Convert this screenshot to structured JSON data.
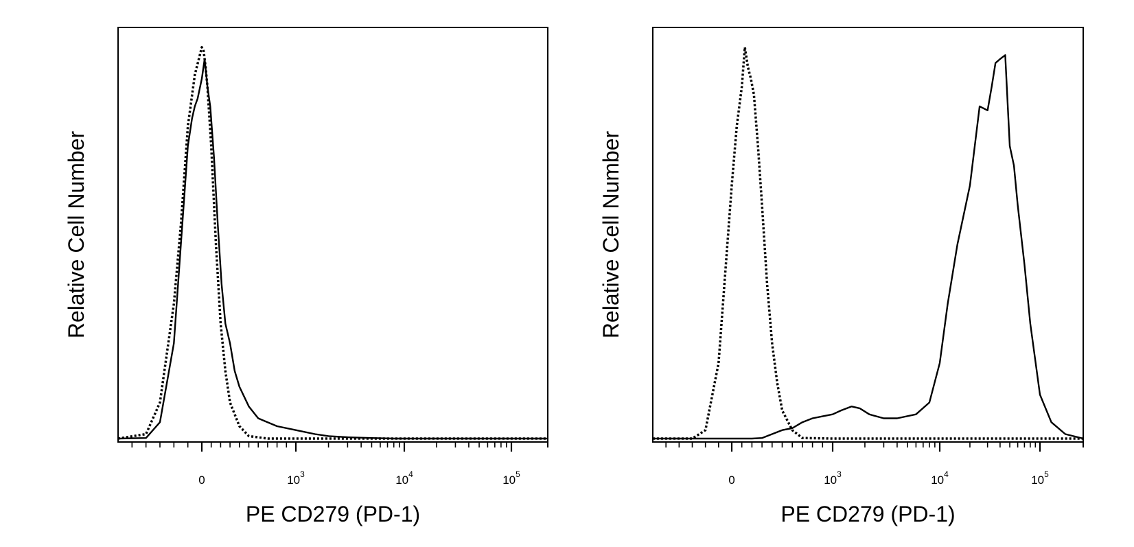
{
  "chart_data": [
    {
      "type": "line",
      "xlabel": "PE  CD279 (PD-1)",
      "ylabel": "Relative Cell Number",
      "x_scale": "biexponential",
      "xlim": [
        -600,
        150000
      ],
      "ylim": [
        0,
        105
      ],
      "grid": false,
      "legend": "none",
      "x_ticks": [
        {
          "value": 0,
          "base": "0",
          "exp": ""
        },
        {
          "value": 1000,
          "base": "10",
          "exp": "3"
        },
        {
          "value": 10000,
          "base": "10",
          "exp": "4"
        },
        {
          "value": 100000,
          "base": "10",
          "exp": "5"
        }
      ],
      "series": [
        {
          "style": "dotted",
          "x": [
            -600,
            -400,
            -300,
            -200,
            -150,
            -100,
            -50,
            0,
            20,
            40,
            60,
            100,
            150,
            200,
            250,
            300,
            400,
            500,
            700,
            1000,
            2000,
            5000,
            10000,
            50000,
            150000
          ],
          "y": [
            0,
            2,
            10,
            35,
            55,
            80,
            93,
            100,
            99,
            95,
            90,
            75,
            50,
            30,
            18,
            10,
            4,
            1.5,
            0.5,
            0.2,
            0,
            0,
            0,
            0,
            0
          ]
        },
        {
          "style": "solid",
          "x": [
            -600,
            -400,
            -300,
            -200,
            -150,
            -100,
            -70,
            -50,
            -30,
            0,
            30,
            60,
            90,
            130,
            170,
            210,
            250,
            300,
            350,
            400,
            500,
            600,
            800,
            1000,
            1500,
            2000,
            3000,
            5000,
            8000,
            10000,
            20000,
            30000,
            50000,
            150000
          ],
          "y": [
            0,
            1,
            5,
            25,
            50,
            75,
            82,
            85,
            87,
            92,
            97,
            90,
            85,
            72,
            55,
            40,
            30,
            25,
            18,
            14,
            9,
            6,
            4,
            3,
            2,
            1.5,
            1.2,
            1,
            0.8,
            0.5,
            0.3,
            0.1,
            0,
            0
          ]
        }
      ]
    },
    {
      "type": "line",
      "xlabel": "PE  CD279 (PD-1)",
      "ylabel": "Relative Cell Number",
      "x_scale": "biexponential",
      "xlim": [
        -600,
        200000
      ],
      "ylim": [
        0,
        105
      ],
      "grid": false,
      "legend": "none",
      "x_ticks": [
        {
          "value": 0,
          "base": "0",
          "exp": ""
        },
        {
          "value": 1000,
          "base": "10",
          "exp": "3"
        },
        {
          "value": 10000,
          "base": "10",
          "exp": "4"
        },
        {
          "value": 100000,
          "base": "10",
          "exp": "5"
        }
      ],
      "series": [
        {
          "style": "dotted",
          "x": [
            -600,
            -400,
            -300,
            -200,
            -100,
            0,
            50,
            100,
            130,
            160,
            190,
            220,
            260,
            300,
            350,
            400,
            450,
            500,
            600,
            700,
            1000,
            2000,
            10000,
            200000
          ],
          "y": [
            0,
            0,
            0.5,
            3,
            20,
            65,
            80,
            90,
            100,
            95,
            92,
            88,
            75,
            60,
            40,
            25,
            15,
            8,
            3,
            1,
            0.3,
            0,
            0,
            0
          ]
        },
        {
          "style": "solid",
          "x": [
            -600,
            -200,
            0,
            200,
            300,
            400,
            500,
            600,
            700,
            800,
            900,
            1000,
            1200,
            1500,
            1800,
            2200,
            3000,
            4000,
            6000,
            8000,
            10000,
            12000,
            15000,
            20000,
            25000,
            30000,
            33000,
            36000,
            40000,
            45000,
            50000,
            55000,
            60000,
            70000,
            80000,
            100000,
            120000,
            150000,
            200000
          ],
          "y": [
            0,
            0,
            0,
            0.3,
            1,
            2,
            3,
            3.5,
            5,
            6,
            6.5,
            7,
            8,
            9,
            8.5,
            7,
            6,
            6,
            7,
            10,
            20,
            35,
            50,
            65,
            85,
            84,
            90,
            96,
            97,
            98,
            75,
            70,
            60,
            45,
            30,
            12,
            5,
            2,
            0
          ]
        }
      ]
    }
  ]
}
